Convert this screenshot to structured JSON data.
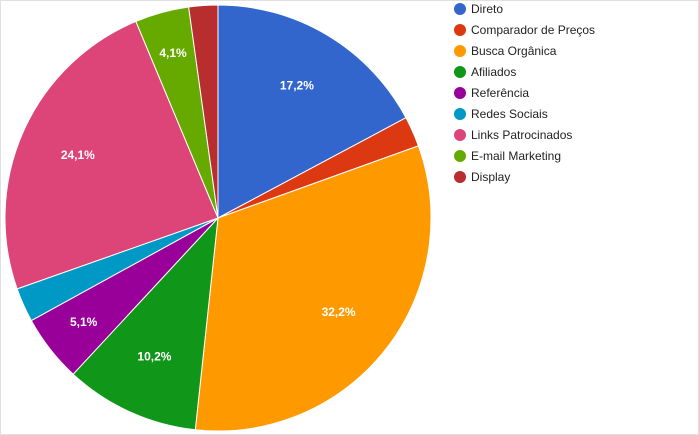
{
  "chart_data": {
    "type": "pie",
    "categories": [
      "Direto",
      "Comparador de Preços",
      "Busca Orgânica",
      "Afiliados",
      "Referência",
      "Redes Sociais",
      "Links Patrocinados",
      "E-mail Marketing",
      "Display"
    ],
    "values": [
      17.2,
      2.3,
      32.2,
      10.2,
      5.1,
      2.6,
      24.1,
      4.1,
      2.2
    ],
    "value_labels": [
      "17,2%",
      null,
      "32,2%",
      "10,2%",
      "5,1%",
      null,
      "24,1%",
      "4,1%",
      null
    ],
    "colors": [
      "#3366cc",
      "#dc3912",
      "#ff9900",
      "#109618",
      "#990099",
      "#0099c6",
      "#dd4477",
      "#66aa00",
      "#b82e2e"
    ],
    "legend": "right"
  }
}
